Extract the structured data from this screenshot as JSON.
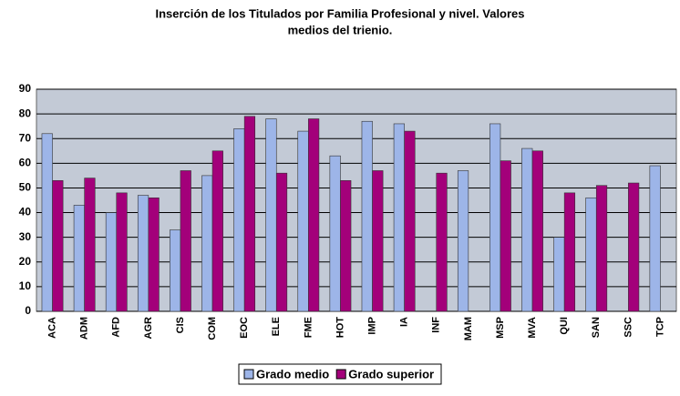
{
  "chart_data": {
    "type": "bar",
    "title": [
      "Inserción de los Titulados por Familia Profesional y nivel. Valores",
      "medios del trienio."
    ],
    "categories": [
      "ACA",
      "ADM",
      "AFD",
      "AGR",
      "CIS",
      "COM",
      "EOC",
      "ELE",
      "FME",
      "HOT",
      "IMP",
      "IA",
      "INF",
      "MAM",
      "MSP",
      "MVA",
      "QUI",
      "SAN",
      "SSC",
      "TCP"
    ],
    "series": [
      {
        "name": "Grado medio",
        "color": "#9db5e8",
        "values": [
          72,
          43,
          40,
          47,
          33,
          55,
          74,
          78,
          73,
          63,
          77,
          76,
          null,
          57,
          76,
          66,
          30,
          46,
          null,
          59
        ]
      },
      {
        "name": "Grado superior",
        "color": "#a3007a",
        "values": [
          53,
          54,
          48,
          46,
          57,
          65,
          79,
          56,
          78,
          53,
          57,
          73,
          56,
          null,
          61,
          65,
          48,
          51,
          52,
          null
        ]
      }
    ],
    "ylim": [
      0,
      90
    ],
    "yticks": [
      0,
      10,
      20,
      30,
      40,
      50,
      60,
      70,
      80,
      90
    ],
    "grid": true,
    "legend": "bottom"
  }
}
